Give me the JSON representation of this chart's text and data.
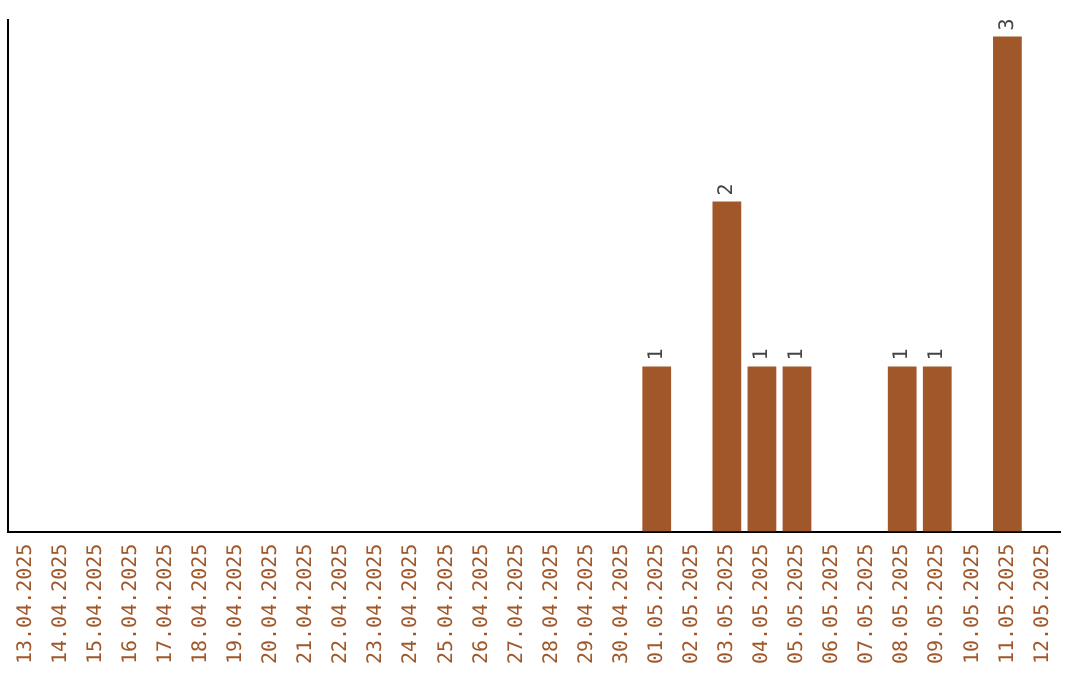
{
  "chart_data": {
    "type": "bar",
    "categories": [
      "13.04.2025",
      "14.04.2025",
      "15.04.2025",
      "16.04.2025",
      "17.04.2025",
      "18.04.2025",
      "19.04.2025",
      "20.04.2025",
      "21.04.2025",
      "22.04.2025",
      "23.04.2025",
      "24.04.2025",
      "25.04.2025",
      "26.04.2025",
      "27.04.2025",
      "28.04.2025",
      "29.04.2025",
      "30.04.2025",
      "01.05.2025",
      "02.05.2025",
      "03.05.2025",
      "04.05.2025",
      "05.05.2025",
      "06.05.2025",
      "07.05.2025",
      "08.05.2025",
      "09.05.2025",
      "10.05.2025",
      "11.05.2025",
      "12.05.2025"
    ],
    "values": [
      null,
      null,
      null,
      null,
      null,
      null,
      null,
      null,
      null,
      null,
      null,
      null,
      null,
      null,
      null,
      null,
      null,
      null,
      1,
      null,
      2,
      1,
      1,
      null,
      null,
      1,
      1,
      null,
      3,
      null
    ],
    "color": "#a0582a",
    "ylim": [
      0,
      3.1
    ],
    "tick_labels": "x",
    "grid": false,
    "legend": false,
    "data_labels": true
  }
}
